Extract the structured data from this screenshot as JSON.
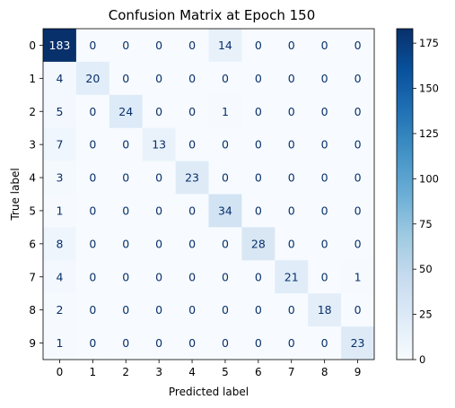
{
  "chart_data": {
    "type": "heatmap",
    "title": "Confusion Matrix at Epoch 150",
    "xlabel": "Predicted label",
    "ylabel": "True label",
    "x_categories": [
      "0",
      "1",
      "2",
      "3",
      "4",
      "5",
      "6",
      "7",
      "8",
      "9"
    ],
    "y_categories": [
      "0",
      "1",
      "2",
      "3",
      "4",
      "5",
      "6",
      "7",
      "8",
      "9"
    ],
    "matrix": [
      [
        183,
        0,
        0,
        0,
        0,
        14,
        0,
        0,
        0,
        0
      ],
      [
        4,
        20,
        0,
        0,
        0,
        0,
        0,
        0,
        0,
        0
      ],
      [
        5,
        0,
        24,
        0,
        0,
        1,
        0,
        0,
        0,
        0
      ],
      [
        7,
        0,
        0,
        13,
        0,
        0,
        0,
        0,
        0,
        0
      ],
      [
        3,
        0,
        0,
        0,
        23,
        0,
        0,
        0,
        0,
        0
      ],
      [
        1,
        0,
        0,
        0,
        0,
        34,
        0,
        0,
        0,
        0
      ],
      [
        8,
        0,
        0,
        0,
        0,
        0,
        28,
        0,
        0,
        0
      ],
      [
        4,
        0,
        0,
        0,
        0,
        0,
        0,
        21,
        0,
        1
      ],
      [
        2,
        0,
        0,
        0,
        0,
        0,
        0,
        0,
        18,
        0
      ],
      [
        1,
        0,
        0,
        0,
        0,
        0,
        0,
        0,
        0,
        23
      ]
    ],
    "colormap": "Blues",
    "value_range": [
      0,
      183
    ],
    "colorbar_ticks": [
      0,
      25,
      50,
      75,
      100,
      125,
      150,
      175
    ],
    "grid": false
  }
}
